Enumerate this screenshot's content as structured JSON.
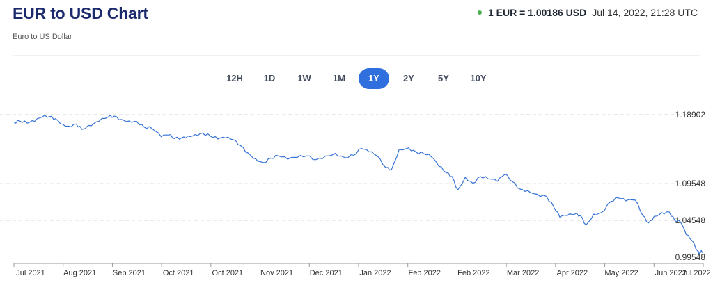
{
  "header": {
    "title": "EUR to USD Chart",
    "subtitle": "Euro to US Dollar",
    "rate_value": "1 EUR = 1.00186 USD",
    "rate_time": "Jul 14, 2022, 21:28 UTC",
    "status_color": "#4caf50"
  },
  "range_selector": {
    "options": [
      "12H",
      "1D",
      "1W",
      "1M",
      "1Y",
      "2Y",
      "5Y",
      "10Y"
    ],
    "selected": "1Y"
  },
  "colors": {
    "line": "#3572d6",
    "grid": "#d6d6d6",
    "active_button": "#2f6fde"
  },
  "chart_data": {
    "type": "line",
    "title": "",
    "xlabel": "",
    "ylabel": "",
    "ylim": [
      0.99548,
      1.18902
    ],
    "y_ticks": [
      "1.18902",
      "1.09548",
      "1.04548",
      "0.99548"
    ],
    "y_tick_values": [
      1.18902,
      1.09548,
      1.04548,
      0.99548
    ],
    "x_tick_labels": [
      "Jul 2021",
      "Aug 2021",
      "Sep 2021",
      "Oct 2021",
      "Oct 2021",
      "Nov 2021",
      "Dec 2021",
      "Jan 2022",
      "Feb 2022",
      "Feb 2022",
      "Mar 2022",
      "Apr 2022",
      "May 2022",
      "Jun 2022",
      "Jul 2022"
    ],
    "x_range": [
      "2021-07-14",
      "2022-07-14"
    ],
    "grid": true,
    "series": [
      {
        "name": "",
        "points": [
          [
            "2021-07-14",
            1.179
          ],
          [
            "2021-07-17",
            1.1805
          ],
          [
            "2021-07-21",
            1.1775
          ],
          [
            "2021-07-25",
            1.18
          ],
          [
            "2021-07-29",
            1.186
          ],
          [
            "2021-08-02",
            1.1865
          ],
          [
            "2021-08-05",
            1.1835
          ],
          [
            "2021-08-09",
            1.176
          ],
          [
            "2021-08-12",
            1.1735
          ],
          [
            "2021-08-16",
            1.1765
          ],
          [
            "2021-08-19",
            1.169
          ],
          [
            "2021-08-24",
            1.174
          ],
          [
            "2021-08-28",
            1.18
          ],
          [
            "2021-09-02",
            1.186
          ],
          [
            "2021-09-05",
            1.187
          ],
          [
            "2021-09-09",
            1.1825
          ],
          [
            "2021-09-13",
            1.1805
          ],
          [
            "2021-09-17",
            1.18
          ],
          [
            "2021-09-21",
            1.172
          ],
          [
            "2021-09-25",
            1.1705
          ],
          [
            "2021-09-30",
            1.159
          ],
          [
            "2021-10-04",
            1.1615
          ],
          [
            "2021-10-07",
            1.1565
          ],
          [
            "2021-10-11",
            1.158
          ],
          [
            "2021-10-14",
            1.16
          ],
          [
            "2021-10-18",
            1.162
          ],
          [
            "2021-10-22",
            1.164
          ],
          [
            "2021-10-26",
            1.16
          ],
          [
            "2021-10-30",
            1.156
          ],
          [
            "2021-11-03",
            1.1575
          ],
          [
            "2021-11-07",
            1.155
          ],
          [
            "2021-11-11",
            1.147
          ],
          [
            "2021-11-15",
            1.137
          ],
          [
            "2021-11-19",
            1.129
          ],
          [
            "2021-11-23",
            1.124
          ],
          [
            "2021-11-27",
            1.13
          ],
          [
            "2021-12-01",
            1.133
          ],
          [
            "2021-12-06",
            1.1285
          ],
          [
            "2021-12-11",
            1.131
          ],
          [
            "2021-12-16",
            1.133
          ],
          [
            "2021-12-21",
            1.128
          ],
          [
            "2021-12-26",
            1.133
          ],
          [
            "2021-12-31",
            1.1365
          ],
          [
            "2022-01-05",
            1.131
          ],
          [
            "2022-01-10",
            1.134
          ],
          [
            "2022-01-14",
            1.143
          ],
          [
            "2022-01-18",
            1.1385
          ],
          [
            "2022-01-22",
            1.1335
          ],
          [
            "2022-01-27",
            1.117
          ],
          [
            "2022-01-30",
            1.115
          ],
          [
            "2022-02-03",
            1.142
          ],
          [
            "2022-02-08",
            1.144
          ],
          [
            "2022-02-12",
            1.138
          ],
          [
            "2022-02-16",
            1.136
          ],
          [
            "2022-02-20",
            1.132
          ],
          [
            "2022-02-24",
            1.119
          ],
          [
            "2022-02-28",
            1.11
          ],
          [
            "2022-03-03",
            1.105
          ],
          [
            "2022-03-06",
            1.087
          ],
          [
            "2022-03-10",
            1.104
          ],
          [
            "2022-03-14",
            1.096
          ],
          [
            "2022-03-18",
            1.105
          ],
          [
            "2022-03-22",
            1.102
          ],
          [
            "2022-03-27",
            1.0985
          ],
          [
            "2022-03-31",
            1.108
          ],
          [
            "2022-04-04",
            1.098
          ],
          [
            "2022-04-08",
            1.088
          ],
          [
            "2022-04-12",
            1.086
          ],
          [
            "2022-04-17",
            1.081
          ],
          [
            "2022-04-22",
            1.078
          ],
          [
            "2022-04-26",
            1.063
          ],
          [
            "2022-04-29",
            1.05
          ],
          [
            "2022-05-03",
            1.052
          ],
          [
            "2022-05-07",
            1.054
          ],
          [
            "2022-05-10",
            1.052
          ],
          [
            "2022-05-13",
            1.0395
          ],
          [
            "2022-05-17",
            1.054
          ],
          [
            "2022-05-21",
            1.056
          ],
          [
            "2022-05-26",
            1.071
          ],
          [
            "2022-05-30",
            1.076
          ],
          [
            "2022-06-03",
            1.072
          ],
          [
            "2022-06-08",
            1.073
          ],
          [
            "2022-06-12",
            1.052
          ],
          [
            "2022-06-15",
            1.042
          ],
          [
            "2022-06-18",
            1.051
          ],
          [
            "2022-06-22",
            1.056
          ],
          [
            "2022-06-26",
            1.057
          ],
          [
            "2022-06-29",
            1.045
          ],
          [
            "2022-07-02",
            1.043
          ],
          [
            "2022-07-05",
            1.026
          ],
          [
            "2022-07-08",
            1.018
          ],
          [
            "2022-07-11",
            1.004
          ],
          [
            "2022-07-12",
            1.001
          ],
          [
            "2022-07-13",
            1.005
          ],
          [
            "2022-07-14",
            1.0019
          ]
        ]
      }
    ]
  }
}
